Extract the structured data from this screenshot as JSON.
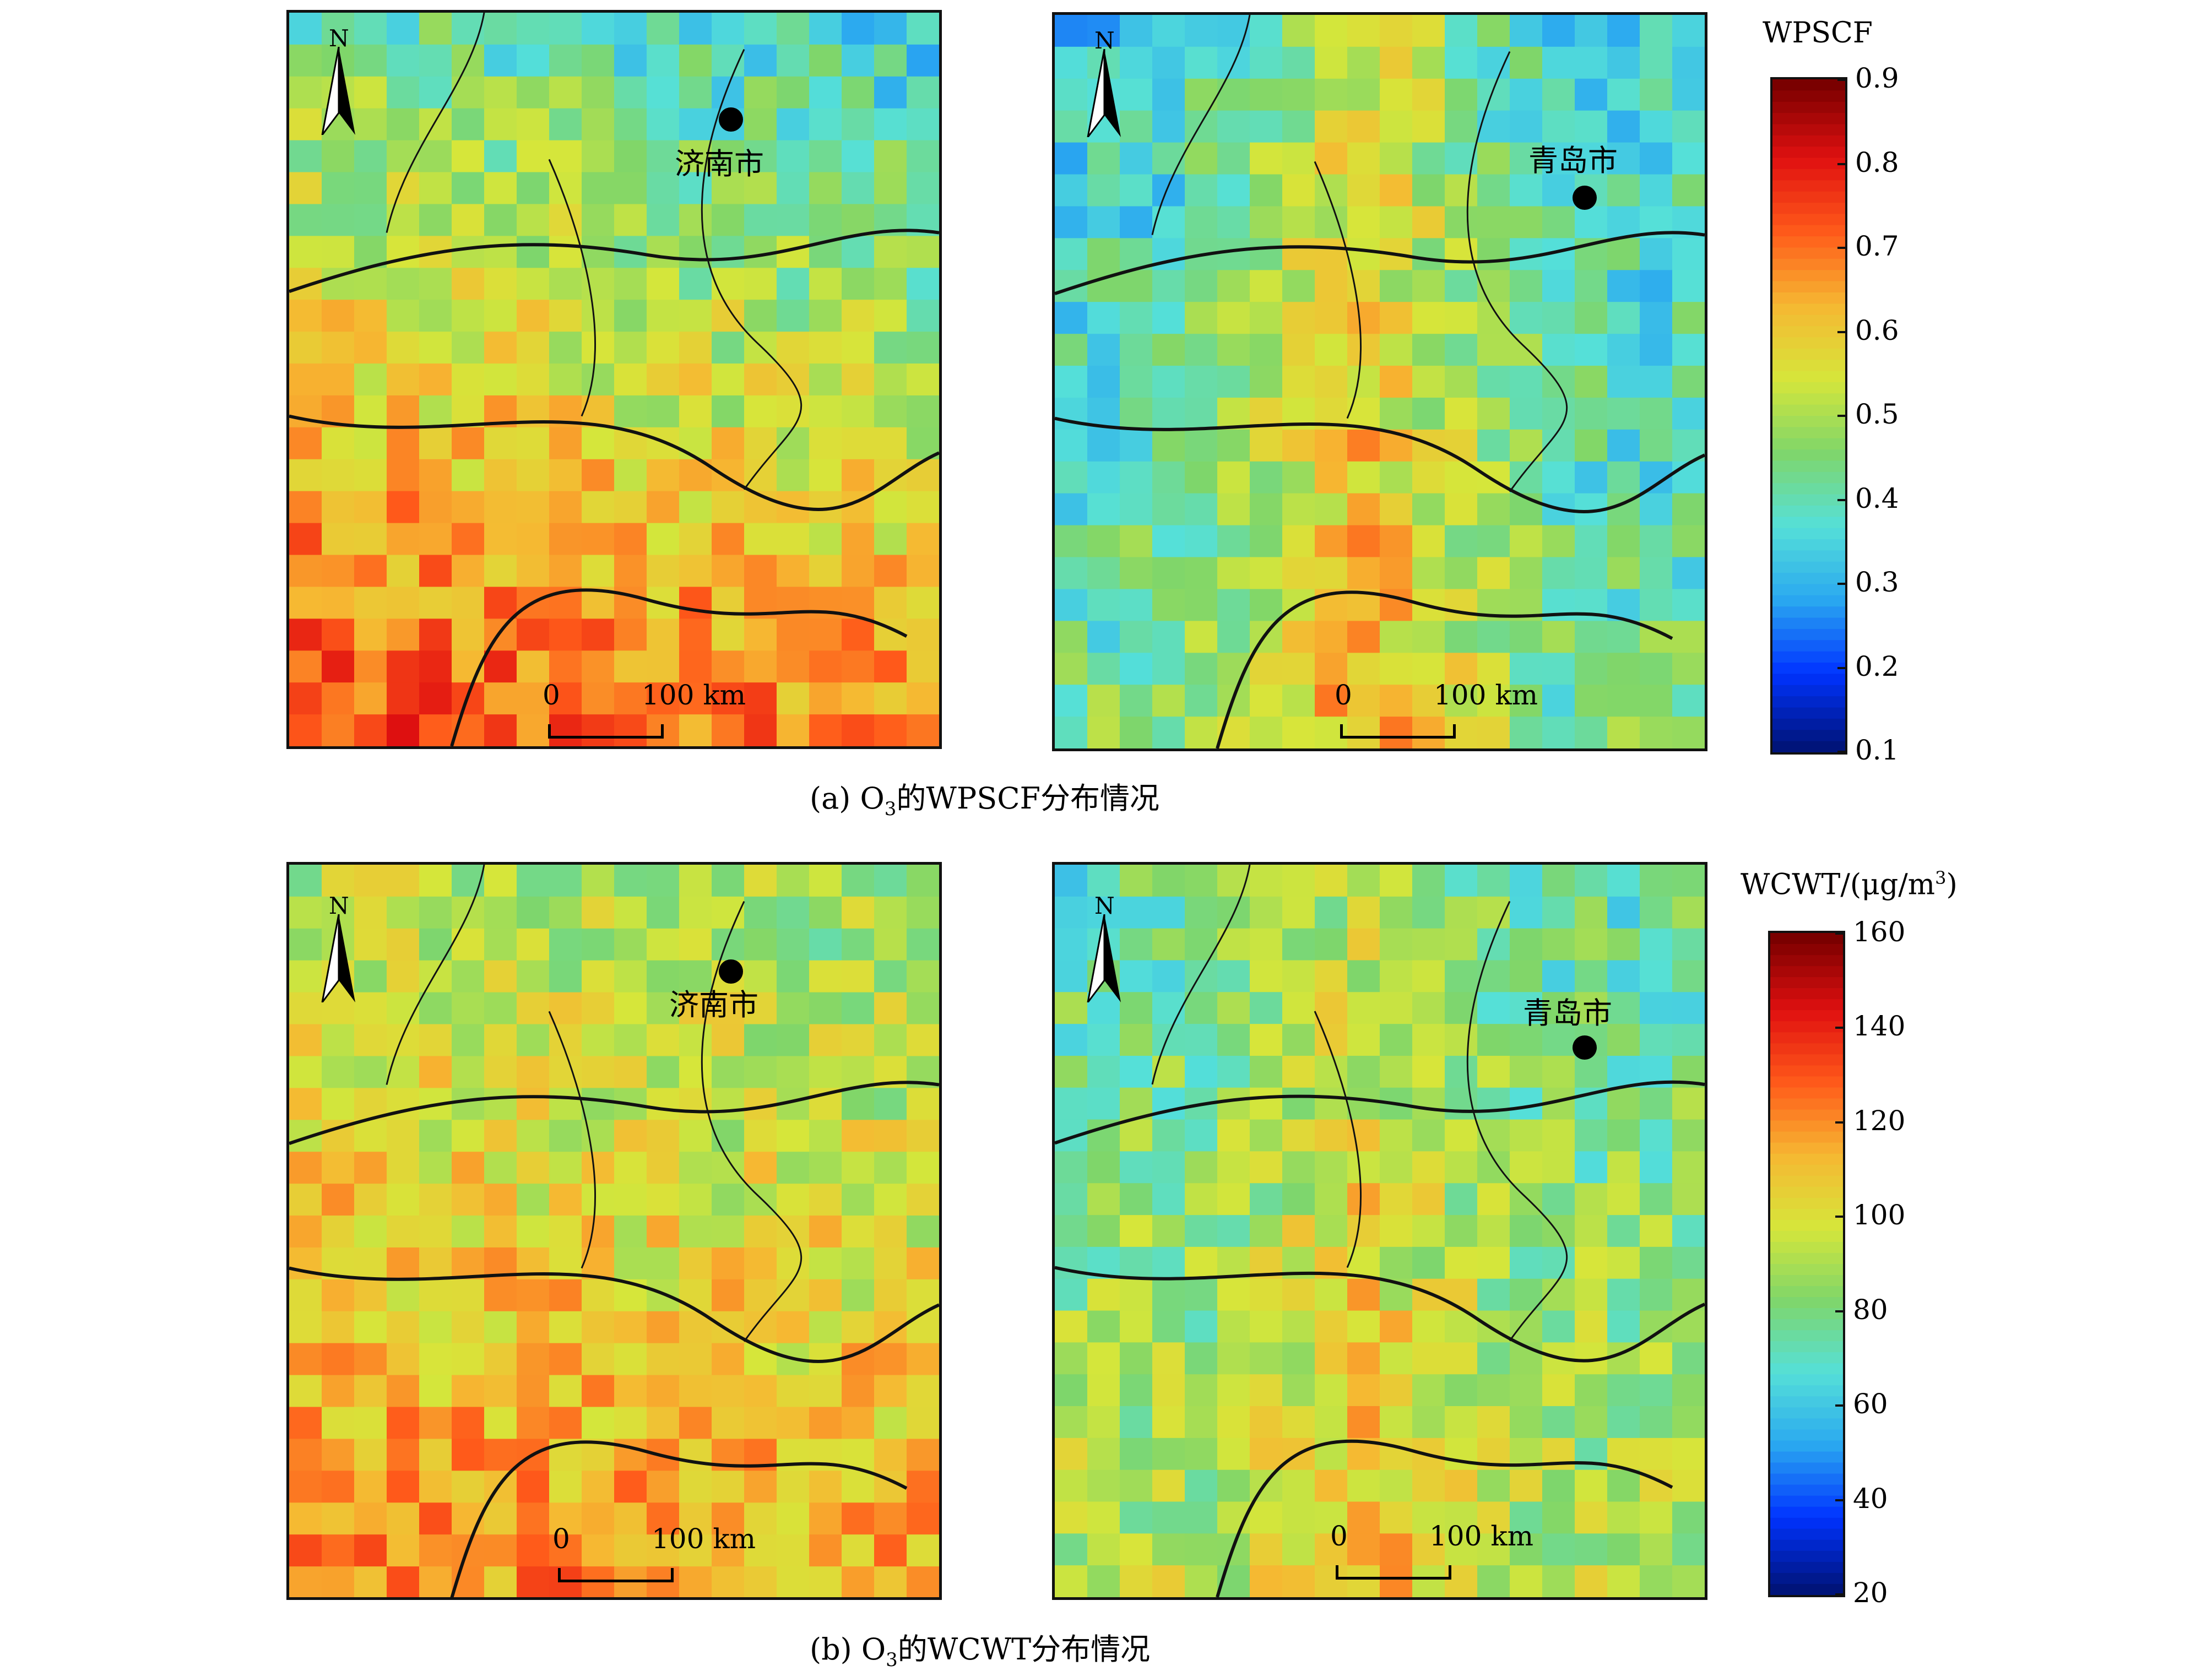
{
  "panels": [
    {
      "id": "a-left",
      "city": "济南市",
      "scale_zero": "0",
      "scale_label": "100 km",
      "north": "N",
      "colorbar": "wpscf"
    },
    {
      "id": "a-right",
      "city": "青岛市",
      "scale_zero": "0",
      "scale_label": "100 km",
      "north": "N",
      "colorbar": "wpscf"
    },
    {
      "id": "b-left",
      "city": "济南市",
      "scale_zero": "0",
      "scale_label": "100 km",
      "north": "N",
      "colorbar": "wcwt"
    },
    {
      "id": "b-right",
      "city": "青岛市",
      "scale_zero": "0",
      "scale_label": "100 km",
      "north": "N",
      "colorbar": "wcwt"
    }
  ],
  "captions": {
    "a": {
      "prefix": "(a) O",
      "sub": "3",
      "suffix": "的WPSCF分布情况"
    },
    "b": {
      "prefix": "(b) O",
      "sub": "3",
      "suffix": "的WCWT分布情况"
    }
  },
  "colorbars": {
    "wpscf": {
      "title": "WPSCF",
      "min": 0.1,
      "max": 0.9,
      "ticks": [
        "0.9",
        "0.8",
        "0.7",
        "0.6",
        "0.5",
        "0.4",
        "0.3",
        "0.2",
        "0.1"
      ]
    },
    "wcwt": {
      "title_prefix": "WCWT/(μg/m",
      "title_sup": "3",
      "title_suffix": ")",
      "min": 20,
      "max": 160,
      "ticks": [
        "160",
        "140",
        "120",
        "100",
        "80",
        "60",
        "40",
        "20"
      ]
    }
  },
  "colormap": [
    "#00147a",
    "#0033ff",
    "#2aa8f0",
    "#55e0d8",
    "#7fd66a",
    "#d6e63a",
    "#f6b832",
    "#ff5a1a",
    "#e01010",
    "#7a0000"
  ]
}
